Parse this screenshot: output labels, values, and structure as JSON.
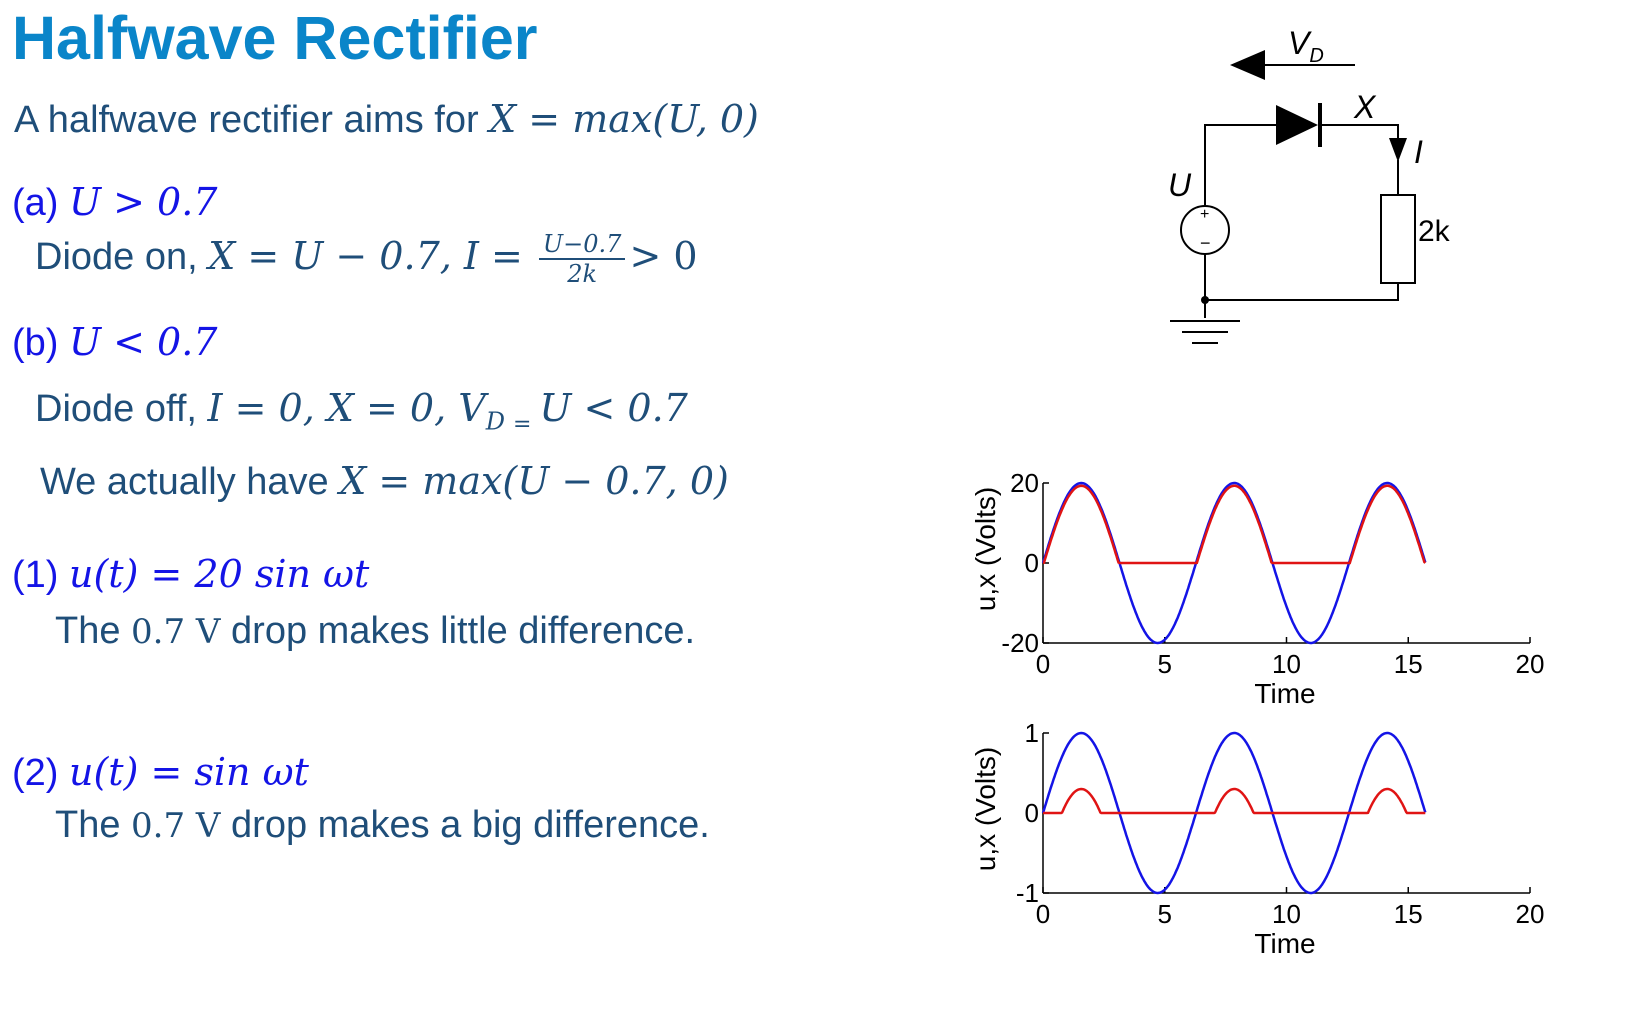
{
  "slide": {
    "title": "Halfwave Rectifier",
    "intro_text": "A halfwave rectifier aims for ",
    "intro_eq": "X  = max(U, 0)",
    "case_a_label": "(a) ",
    "case_a_cond": "U > 0.7",
    "case_a_text": "Diode on, ",
    "case_a_eq1": "X = U − 0.7,  I = ",
    "case_a_frac_num": "U−0.7",
    "case_a_frac_den": "2k",
    "case_a_eq2": "> 0",
    "case_b_label": "(b) ",
    "case_b_cond": "U < 0.7",
    "case_b_text": "Diode off,  ",
    "case_b_eq1": "I  = 0,   X = 0,  ",
    "case_b_vd": "V",
    "case_b_vd_sub": "D",
    "case_b_eq_sign": "=",
    "case_b_eq2": "U < 0.7",
    "actual_text": "We actually have ",
    "actual_eq": "X = max(U − 0.7, 0)",
    "ex1_label": "(1) ",
    "ex1_eq": "u(t)  =  20 sin ωt",
    "ex1_text_a": "The ",
    "ex1_text_b": "0.7 V",
    "ex1_text_c": " drop makes little difference.",
    "ex2_label": "(2) ",
    "ex2_eq": "u(t)  =  sin ωt",
    "ex2_text_a": "The ",
    "ex2_text_b": "0.7 V",
    "ex2_text_c": " drop makes a big  difference."
  },
  "circuit": {
    "vd_label": "V",
    "vd_sub": "D",
    "x_label": "X",
    "i_label": "I",
    "u_label": "U",
    "resistor_label": "2k",
    "plus_sign": "+",
    "minus_sign": "−"
  },
  "colors": {
    "title": "#0a85c9",
    "body_text": "#1f4e79",
    "case_text": "#1414e6",
    "input_wave": "#1414e6",
    "output_wave": "#e01414"
  },
  "chart_data": [
    {
      "type": "line",
      "xlabel": "Time",
      "ylabel": "u,x (Volts)",
      "xlim": [
        0,
        20
      ],
      "ylim": [
        -20,
        20
      ],
      "xticks": [
        "0",
        "5",
        "10",
        "15",
        "20"
      ],
      "yticks": [
        "-20",
        "0",
        "20"
      ],
      "x_range": [
        0,
        15.7
      ],
      "series": [
        {
          "function": "20*sin(t)",
          "color": "#1414e6"
        },
        {
          "function": "max(20*sin(t) - 0.7, 0)",
          "color": "#e01414"
        }
      ]
    },
    {
      "type": "line",
      "xlabel": "Time",
      "ylabel": "u,x (Volts)",
      "xlim": [
        0,
        20
      ],
      "ylim": [
        -1,
        1
      ],
      "xticks": [
        "0",
        "5",
        "10",
        "15",
        "20"
      ],
      "yticks": [
        "-1",
        "0",
        "1"
      ],
      "x_range": [
        0,
        15.7
      ],
      "series": [
        {
          "function": "sin(t)",
          "color": "#1414e6"
        },
        {
          "function": "max(sin(t) - 0.7, 0)",
          "color": "#e01414"
        }
      ]
    }
  ]
}
